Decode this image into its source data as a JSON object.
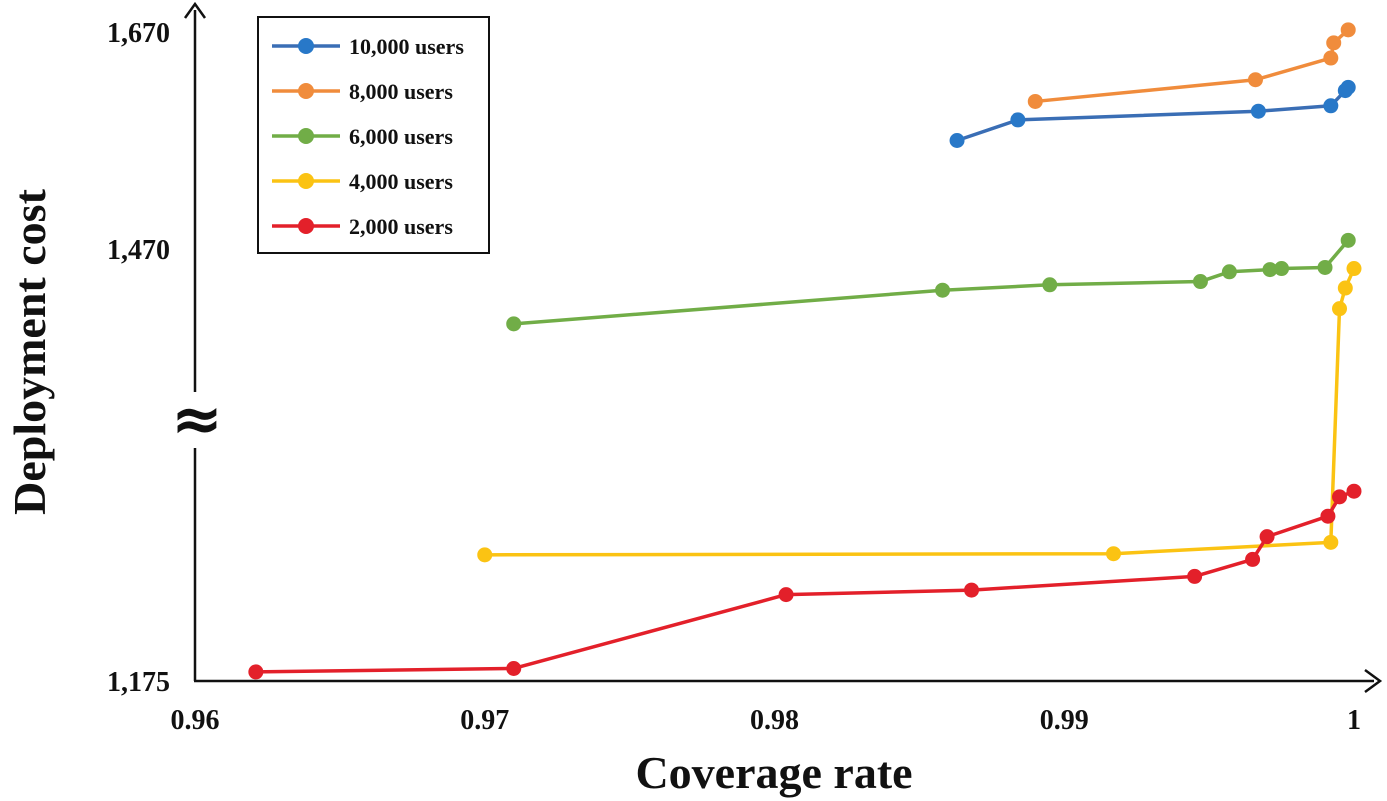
{
  "chart_data": {
    "type": "line",
    "xlabel": "Coverage rate",
    "ylabel": "Deployment cost",
    "xlim": [
      0.96,
      1.0
    ],
    "x_ticks": [
      "0.96",
      "0.97",
      "0.98",
      "0.99",
      "1"
    ],
    "y_ticks": [
      "1,175",
      "1,470",
      "1,670"
    ],
    "axis_break_symbol": "≈",
    "grid": false,
    "legend_position": "top-left",
    "series": [
      {
        "name": "10,000 users",
        "color": "#3a6eb5",
        "marker_color": "#2878c8",
        "x": [
          0.9863,
          0.9884,
          0.9967,
          0.9992,
          0.9997,
          0.9998
        ],
        "y": [
          1570,
          1589,
          1597,
          1602,
          1616,
          1619
        ]
      },
      {
        "name": "8,000 users",
        "color": "#f08c3c",
        "marker_color": "#f08c3c",
        "x": [
          0.989,
          0.9966,
          0.9992,
          0.9993,
          0.9998
        ],
        "y": [
          1606,
          1626,
          1646,
          1660,
          1672
        ]
      },
      {
        "name": "6,000 users",
        "color": "#71ad47",
        "marker_color": "#71ad47",
        "x": [
          0.971,
          0.9858,
          0.9895,
          0.9947,
          0.9957,
          0.9971,
          0.9975,
          0.999,
          0.9998
        ],
        "y": [
          1401,
          1432,
          1437,
          1440,
          1449,
          1451,
          1452,
          1453,
          1478
        ]
      },
      {
        "name": "4,000 users",
        "color": "#fbc313",
        "marker_color": "#fbc313",
        "x": [
          0.97,
          0.9917,
          0.9992,
          0.9995,
          0.9997,
          1.0
        ],
        "y": [
          1286,
          1287,
          1297,
          1415,
          1434,
          1452
        ]
      },
      {
        "name": "2,000 users",
        "color": "#e3202a",
        "marker_color": "#e3202a",
        "x": [
          0.9621,
          0.971,
          0.9804,
          0.9868,
          0.9945,
          0.9965,
          0.997,
          0.9991,
          0.9995,
          1.0
        ],
        "y": [
          1183,
          1186,
          1251,
          1255,
          1267,
          1282,
          1302,
          1320,
          1337,
          1342
        ]
      }
    ]
  }
}
